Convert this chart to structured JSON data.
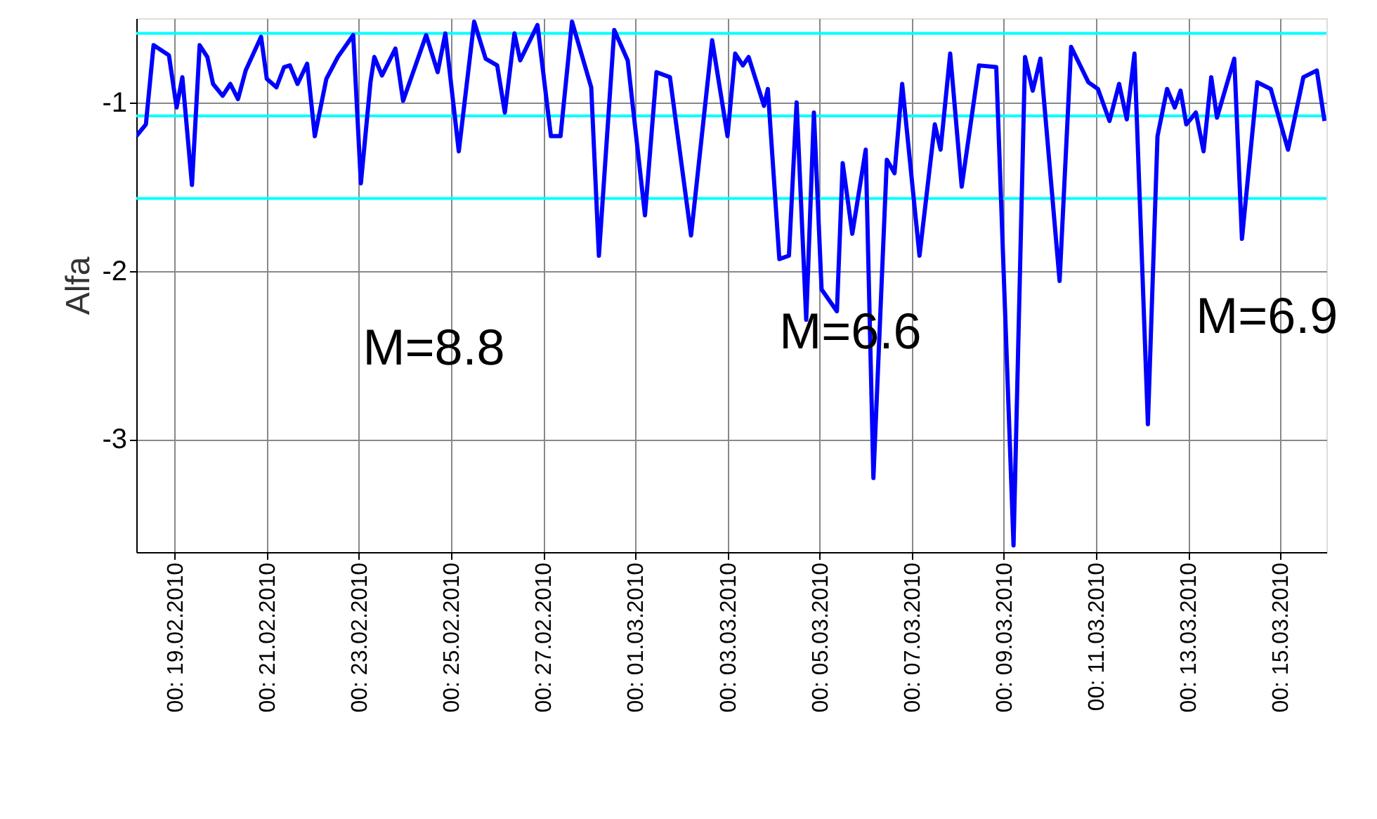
{
  "chart_data": {
    "type": "line",
    "ylabel": "Alfa",
    "xlim": [
      "2010-02-18T04:00",
      "2010-03-16T00:00"
    ],
    "ylim": [
      -3.67,
      -0.5
    ],
    "yticks": [
      -1,
      -2,
      -3
    ],
    "xticks": [
      {
        "value": "2010-02-19",
        "label": "00: 19.02.2010"
      },
      {
        "value": "2010-02-21",
        "label": "00: 21.02.2010"
      },
      {
        "value": "2010-02-23",
        "label": "00: 23.02.2010"
      },
      {
        "value": "2010-02-25",
        "label": "00: 25.02.2010"
      },
      {
        "value": "2010-02-27",
        "label": "00: 27.02.2010"
      },
      {
        "value": "2010-03-01",
        "label": "00: 01.03.2010"
      },
      {
        "value": "2010-03-03",
        "label": "00: 03.03.2010"
      },
      {
        "value": "2010-03-05",
        "label": "00: 05.03.2010"
      },
      {
        "value": "2010-03-07",
        "label": "00: 07.03.2010"
      },
      {
        "value": "2010-03-09",
        "label": "00: 09.03.2010"
      },
      {
        "value": "2010-03-11",
        "label": "00: 11.03.2010"
      },
      {
        "value": "2010-03-13",
        "label": "00: 13.03.2010"
      },
      {
        "value": "2010-03-15",
        "label": "00: 15.03.2010"
      }
    ],
    "grid": true,
    "x": [
      "2010-02-18T04:00",
      "2010-02-18T09:00",
      "2010-02-18T13:00",
      "2010-02-18T21:00",
      "2010-02-19T01:00",
      "2010-02-19T04:00",
      "2010-02-19T09:00",
      "2010-02-19T13:00",
      "2010-02-19T17:00",
      "2010-02-19T20:00",
      "2010-02-20T01:00",
      "2010-02-20T05:00",
      "2010-02-20T09:00",
      "2010-02-20T13:00",
      "2010-02-20T21:00",
      "2010-02-21T00:00",
      "2010-02-21T05:00",
      "2010-02-21T09:00",
      "2010-02-21T12:00",
      "2010-02-21T16:00",
      "2010-02-21T21:00",
      "2010-02-22T01:00",
      "2010-02-22T07:00",
      "2010-02-22T13:00",
      "2010-02-22T21:00",
      "2010-02-23T01:00",
      "2010-02-23T06:00",
      "2010-02-23T08:00",
      "2010-02-23T12:00",
      "2010-02-23T19:00",
      "2010-02-23T23:00",
      "2010-02-24T11:00",
      "2010-02-24T17:00",
      "2010-02-24T21:00",
      "2010-02-25T04:00",
      "2010-02-25T12:00",
      "2010-02-25T18:00",
      "2010-02-26T00:00",
      "2010-02-26T04:00",
      "2010-02-26T09:00",
      "2010-02-26T12:00",
      "2010-02-26T21:00",
      "2010-02-27T04:00",
      "2010-02-27T09:00",
      "2010-02-27T15:00",
      "2010-02-28T01:00",
      "2010-02-28T05:00",
      "2010-02-28T13:00",
      "2010-02-28T20:00",
      "2010-03-01T05:00",
      "2010-03-01T11:00",
      "2010-03-01T18:00",
      "2010-03-02T05:00",
      "2010-03-02T16:00",
      "2010-03-03T00:00",
      "2010-03-03T04:00",
      "2010-03-03T08:00",
      "2010-03-03T11:00",
      "2010-03-03T19:00",
      "2010-03-03T21:00",
      "2010-03-04T03:00",
      "2010-03-04T08:00",
      "2010-03-04T12:00",
      "2010-03-04T17:00",
      "2010-03-04T21:00",
      "2010-03-05T01:00",
      "2010-03-05T09:00",
      "2010-03-05T12:00",
      "2010-03-05T17:00",
      "2010-03-06T00:00",
      "2010-03-06T04:00",
      "2010-03-06T11:00",
      "2010-03-06T15:00",
      "2010-03-06T19:00",
      "2010-03-07T04:00",
      "2010-03-07T12:00",
      "2010-03-07T15:00",
      "2010-03-07T20:00",
      "2010-03-08T02:00",
      "2010-03-08T11:00",
      "2010-03-08T20:00",
      "2010-03-09T05:00",
      "2010-03-09T11:00",
      "2010-03-09T15:00",
      "2010-03-09T19:00",
      "2010-03-10T05:00",
      "2010-03-10T11:00",
      "2010-03-10T20:00",
      "2010-03-11T01:00",
      "2010-03-11T07:00",
      "2010-03-11T12:00",
      "2010-03-11T16:00",
      "2010-03-11T20:00",
      "2010-03-12T03:00",
      "2010-03-12T08:00",
      "2010-03-12T13:00",
      "2010-03-12T17:00",
      "2010-03-12T20:00",
      "2010-03-12T23:00",
      "2010-03-13T04:00",
      "2010-03-13T08:00",
      "2010-03-13T12:00",
      "2010-03-13T15:00",
      "2010-03-14T00:00",
      "2010-03-14T04:00",
      "2010-03-14T12:00",
      "2010-03-14T19:00",
      "2010-03-15T04:00",
      "2010-03-15T12:00",
      "2010-03-15T19:00",
      "2010-03-15T23:00"
    ],
    "series": [
      {
        "color": "#0000ff",
        "values": [
          -1.2,
          -1.13,
          -0.66,
          -0.72,
          -1.03,
          -0.85,
          -1.49,
          -0.66,
          -0.73,
          -0.89,
          -0.96,
          -0.89,
          -0.98,
          -0.81,
          -0.61,
          -0.86,
          -0.91,
          -0.79,
          -0.78,
          -0.89,
          -0.77,
          -1.2,
          -0.86,
          -0.73,
          -0.6,
          -1.48,
          -0.88,
          -0.73,
          -0.84,
          -0.68,
          -0.99,
          -0.6,
          -0.82,
          -0.59,
          -1.29,
          -0.52,
          -0.74,
          -0.78,
          -1.06,
          -0.59,
          -0.75,
          -0.54,
          -1.2,
          -1.2,
          -0.52,
          -0.91,
          -1.91,
          -0.57,
          -0.75,
          -1.67,
          -0.82,
          -0.85,
          -1.79,
          -0.63,
          -1.2,
          -0.71,
          -0.78,
          -0.73,
          -1.02,
          -0.92,
          -1.93,
          -1.91,
          -1.0,
          -2.29,
          -1.06,
          -2.11,
          -2.24,
          -1.36,
          -1.78,
          -1.28,
          -3.23,
          -1.34,
          -1.42,
          -0.89,
          -1.91,
          -1.13,
          -1.28,
          -0.71,
          -1.5,
          -0.78,
          -0.79,
          -3.63,
          -0.73,
          -0.93,
          -0.74,
          -2.06,
          -0.67,
          -0.88,
          -0.92,
          -1.11,
          -0.89,
          -1.1,
          -0.71,
          -2.91,
          -1.2,
          -0.92,
          -1.03,
          -0.93,
          -1.13,
          -1.06,
          -1.29,
          -0.85,
          -1.09,
          -0.74,
          -1.81,
          -0.88,
          -0.92,
          -1.28,
          -0.85,
          -0.81,
          -1.11
        ]
      }
    ],
    "ref_lines": [
      {
        "axis": "y",
        "value": -0.59,
        "color": "#00ffff"
      },
      {
        "axis": "y",
        "value": -1.08,
        "color": "#00ffff"
      },
      {
        "axis": "y",
        "value": -1.57,
        "color": "#00ffff"
      }
    ],
    "annotations": [
      "M=8.8",
      "M=6.6",
      "M=6.9"
    ]
  }
}
